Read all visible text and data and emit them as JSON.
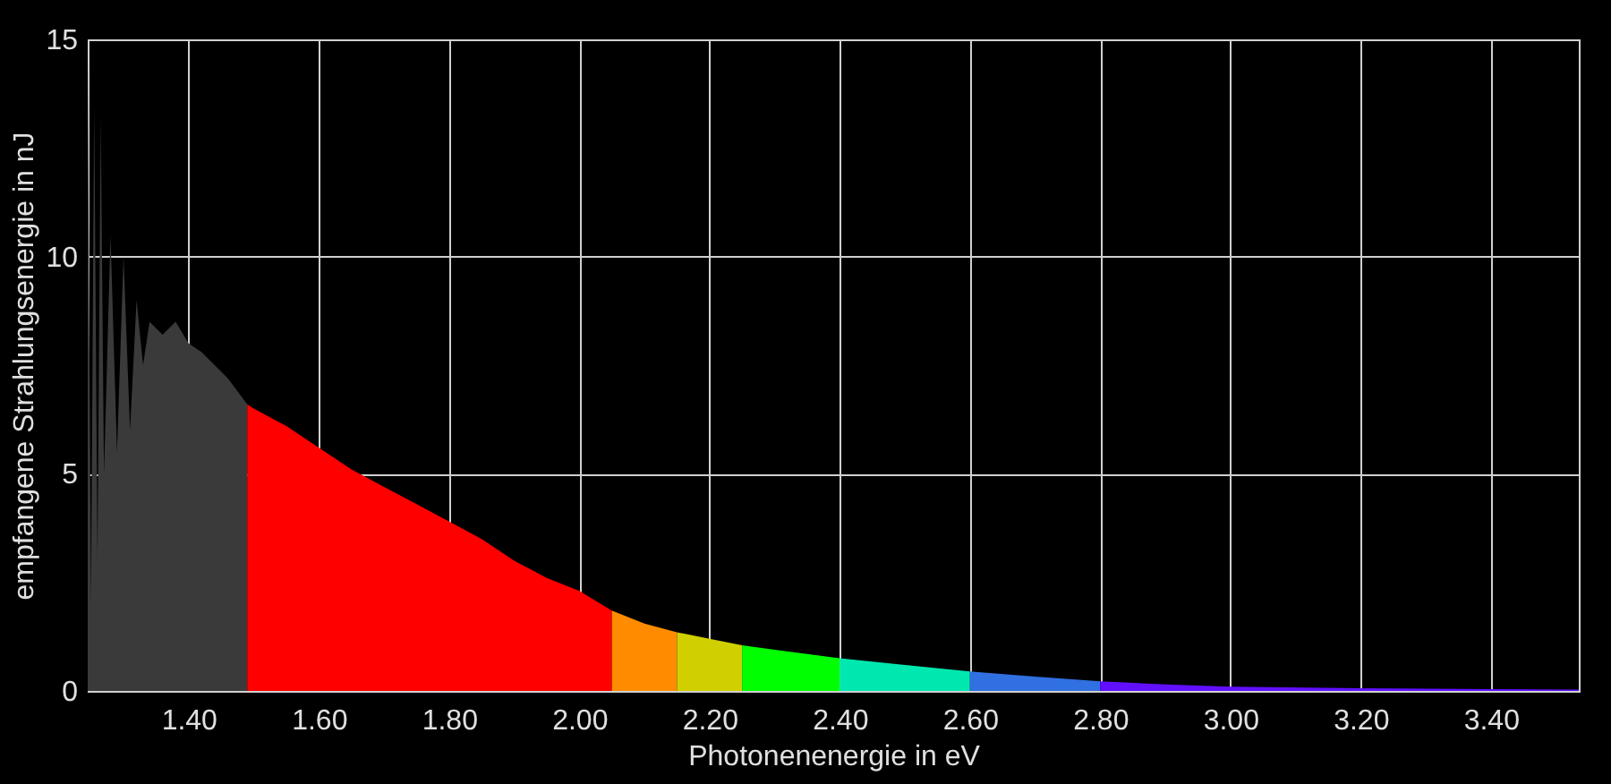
{
  "chart_data": {
    "type": "area",
    "xlabel": "Photonenenergie in eV",
    "ylabel": "empfangene Strahlungsenergie in nJ",
    "xlim": [
      1.245,
      3.535
    ],
    "ylim": [
      0,
      15
    ],
    "xticks": [
      {
        "value": 1.4,
        "label": "1.40"
      },
      {
        "value": 1.6,
        "label": "1.60"
      },
      {
        "value": 1.8,
        "label": "1.80"
      },
      {
        "value": 2.0,
        "label": "2.00"
      },
      {
        "value": 2.2,
        "label": "2.20"
      },
      {
        "value": 2.4,
        "label": "2.40"
      },
      {
        "value": 2.6,
        "label": "2.60"
      },
      {
        "value": 2.8,
        "label": "2.80"
      },
      {
        "value": 3.0,
        "label": "3.00"
      },
      {
        "value": 3.2,
        "label": "3.20"
      },
      {
        "value": 3.4,
        "label": "3.40"
      }
    ],
    "yticks": [
      0,
      5,
      10,
      15
    ],
    "grid": true,
    "series": [
      {
        "color": "#3a3a3a",
        "x": [
          1.245,
          1.25,
          1.255,
          1.26,
          1.265,
          1.27,
          1.28,
          1.29,
          1.3,
          1.31,
          1.32,
          1.33,
          1.34,
          1.36,
          1.38,
          1.4,
          1.42,
          1.44,
          1.46,
          1.49
        ],
        "values": [
          14.5,
          2,
          13.5,
          3,
          13.2,
          5,
          10.5,
          5.5,
          10,
          6,
          9,
          7.5,
          8.5,
          8.2,
          8.5,
          8,
          7.8,
          7.5,
          7.2,
          6.6
        ]
      },
      {
        "color": "#ff0000",
        "x": [
          1.49,
          1.5,
          1.55,
          1.6,
          1.65,
          1.7,
          1.75,
          1.8,
          1.85,
          1.9,
          1.95,
          2.0,
          2.05
        ],
        "values": [
          6.6,
          6.5,
          6.1,
          5.6,
          5.1,
          4.7,
          4.3,
          3.9,
          3.5,
          3.0,
          2.6,
          2.3,
          1.85
        ]
      },
      {
        "color": "#ff8c00",
        "x": [
          2.05,
          2.1,
          2.15
        ],
        "values": [
          1.85,
          1.55,
          1.35
        ]
      },
      {
        "color": "#d0d000",
        "x": [
          2.15,
          2.2,
          2.25
        ],
        "values": [
          1.35,
          1.2,
          1.05
        ]
      },
      {
        "color": "#00ff00",
        "x": [
          2.25,
          2.3,
          2.4
        ],
        "values": [
          1.05,
          0.95,
          0.75
        ]
      },
      {
        "color": "#00e8b0",
        "x": [
          2.4,
          2.5,
          2.6
        ],
        "values": [
          0.75,
          0.6,
          0.45
        ]
      },
      {
        "color": "#3070e0",
        "x": [
          2.6,
          2.7,
          2.8
        ],
        "values": [
          0.45,
          0.33,
          0.22
        ]
      },
      {
        "color": "#6010ff",
        "x": [
          2.8,
          2.9,
          3.0,
          3.2,
          3.4,
          3.535
        ],
        "values": [
          0.22,
          0.15,
          0.1,
          0.06,
          0.04,
          0.03
        ]
      }
    ]
  }
}
